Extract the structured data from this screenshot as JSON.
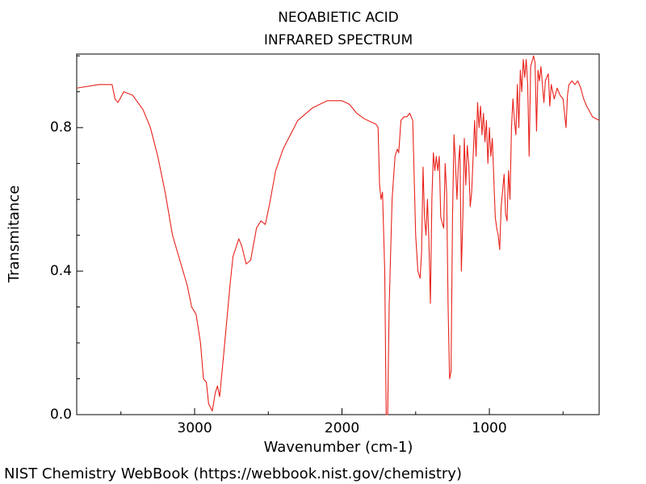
{
  "chart_data": {
    "type": "line",
    "title": "NEOABIETIC ACID",
    "subtitle": "INFRARED SPECTRUM",
    "x_label": "Wavenumber (cm-1)",
    "y_label": "Transmitance",
    "footer": "NIST Chemistry WebBook (https://webbook.nist.gov/chemistry)",
    "color": "#e8221b",
    "xlim": [
      3800,
      255
    ],
    "ylim": [
      0,
      1.005
    ],
    "xticks": [
      3000,
      2000,
      1000
    ],
    "yticks": [
      {
        "value": 0,
        "label": "0.0"
      },
      0.4,
      0.8
    ],
    "xminor": [
      3500,
      2500,
      1500,
      500
    ],
    "yminor": [
      0.1,
      0.2,
      0.3,
      0.5,
      0.6,
      0.7,
      0.9,
      1.0
    ],
    "x": [
      3800,
      3650,
      3560,
      3540,
      3520,
      3480,
      3420,
      3350,
      3300,
      3250,
      3200,
      3150,
      3100,
      3050,
      3020,
      2990,
      2960,
      2940,
      2920,
      2905,
      2880,
      2860,
      2845,
      2830,
      2800,
      2760,
      2740,
      2700,
      2680,
      2650,
      2620,
      2580,
      2550,
      2520,
      2490,
      2450,
      2400,
      2300,
      2200,
      2100,
      2000,
      1950,
      1900,
      1850,
      1800,
      1770,
      1755,
      1745,
      1735,
      1725,
      1710,
      1700,
      1690,
      1680,
      1660,
      1640,
      1625,
      1615,
      1600,
      1580,
      1560,
      1540,
      1520,
      1500,
      1485,
      1470,
      1460,
      1450,
      1440,
      1430,
      1420,
      1410,
      1400,
      1390,
      1380,
      1370,
      1360,
      1350,
      1340,
      1330,
      1310,
      1300,
      1290,
      1280,
      1270,
      1260,
      1250,
      1240,
      1230,
      1220,
      1210,
      1200,
      1190,
      1180,
      1170,
      1160,
      1150,
      1140,
      1130,
      1120,
      1100,
      1090,
      1080,
      1070,
      1060,
      1050,
      1040,
      1030,
      1020,
      1010,
      1000,
      990,
      980,
      960,
      950,
      940,
      930,
      920,
      900,
      890,
      880,
      870,
      860,
      850,
      840,
      830,
      820,
      810,
      800,
      790,
      780,
      770,
      760,
      750,
      740,
      730,
      720,
      700,
      690,
      680,
      670,
      660,
      650,
      630,
      620,
      600,
      590,
      580,
      560,
      540,
      520,
      500,
      480,
      470,
      460,
      440,
      420,
      400,
      380,
      360,
      340,
      300,
      255
    ],
    "values": [
      0.91,
      0.92,
      0.92,
      0.88,
      0.87,
      0.9,
      0.89,
      0.85,
      0.8,
      0.72,
      0.62,
      0.5,
      0.43,
      0.36,
      0.3,
      0.28,
      0.2,
      0.1,
      0.09,
      0.03,
      0.01,
      0.06,
      0.08,
      0.05,
      0.18,
      0.36,
      0.44,
      0.49,
      0.47,
      0.42,
      0.43,
      0.52,
      0.54,
      0.53,
      0.59,
      0.68,
      0.74,
      0.82,
      0.855,
      0.875,
      0.875,
      0.865,
      0.84,
      0.825,
      0.815,
      0.81,
      0.8,
      0.64,
      0.6,
      0.62,
      0.4,
      0.0,
      0.0,
      0.3,
      0.6,
      0.72,
      0.74,
      0.73,
      0.82,
      0.83,
      0.83,
      0.84,
      0.82,
      0.5,
      0.4,
      0.38,
      0.45,
      0.69,
      0.55,
      0.5,
      0.6,
      0.48,
      0.31,
      0.6,
      0.73,
      0.68,
      0.72,
      0.68,
      0.72,
      0.55,
      0.52,
      0.7,
      0.62,
      0.3,
      0.1,
      0.12,
      0.55,
      0.78,
      0.7,
      0.6,
      0.7,
      0.75,
      0.4,
      0.55,
      0.77,
      0.64,
      0.75,
      0.7,
      0.58,
      0.62,
      0.82,
      0.72,
      0.87,
      0.8,
      0.86,
      0.78,
      0.84,
      0.76,
      0.82,
      0.7,
      0.8,
      0.72,
      0.77,
      0.55,
      0.52,
      0.5,
      0.46,
      0.58,
      0.67,
      0.56,
      0.54,
      0.68,
      0.6,
      0.8,
      0.88,
      0.82,
      0.78,
      0.92,
      0.8,
      0.96,
      0.9,
      0.99,
      0.94,
      0.99,
      0.92,
      0.72,
      0.97,
      1.0,
      0.98,
      0.79,
      0.96,
      0.93,
      0.97,
      0.87,
      0.93,
      0.95,
      0.86,
      0.92,
      0.88,
      0.91,
      0.89,
      0.88,
      0.8,
      0.89,
      0.92,
      0.93,
      0.92,
      0.93,
      0.91,
      0.88,
      0.86,
      0.83,
      0.82
    ]
  }
}
